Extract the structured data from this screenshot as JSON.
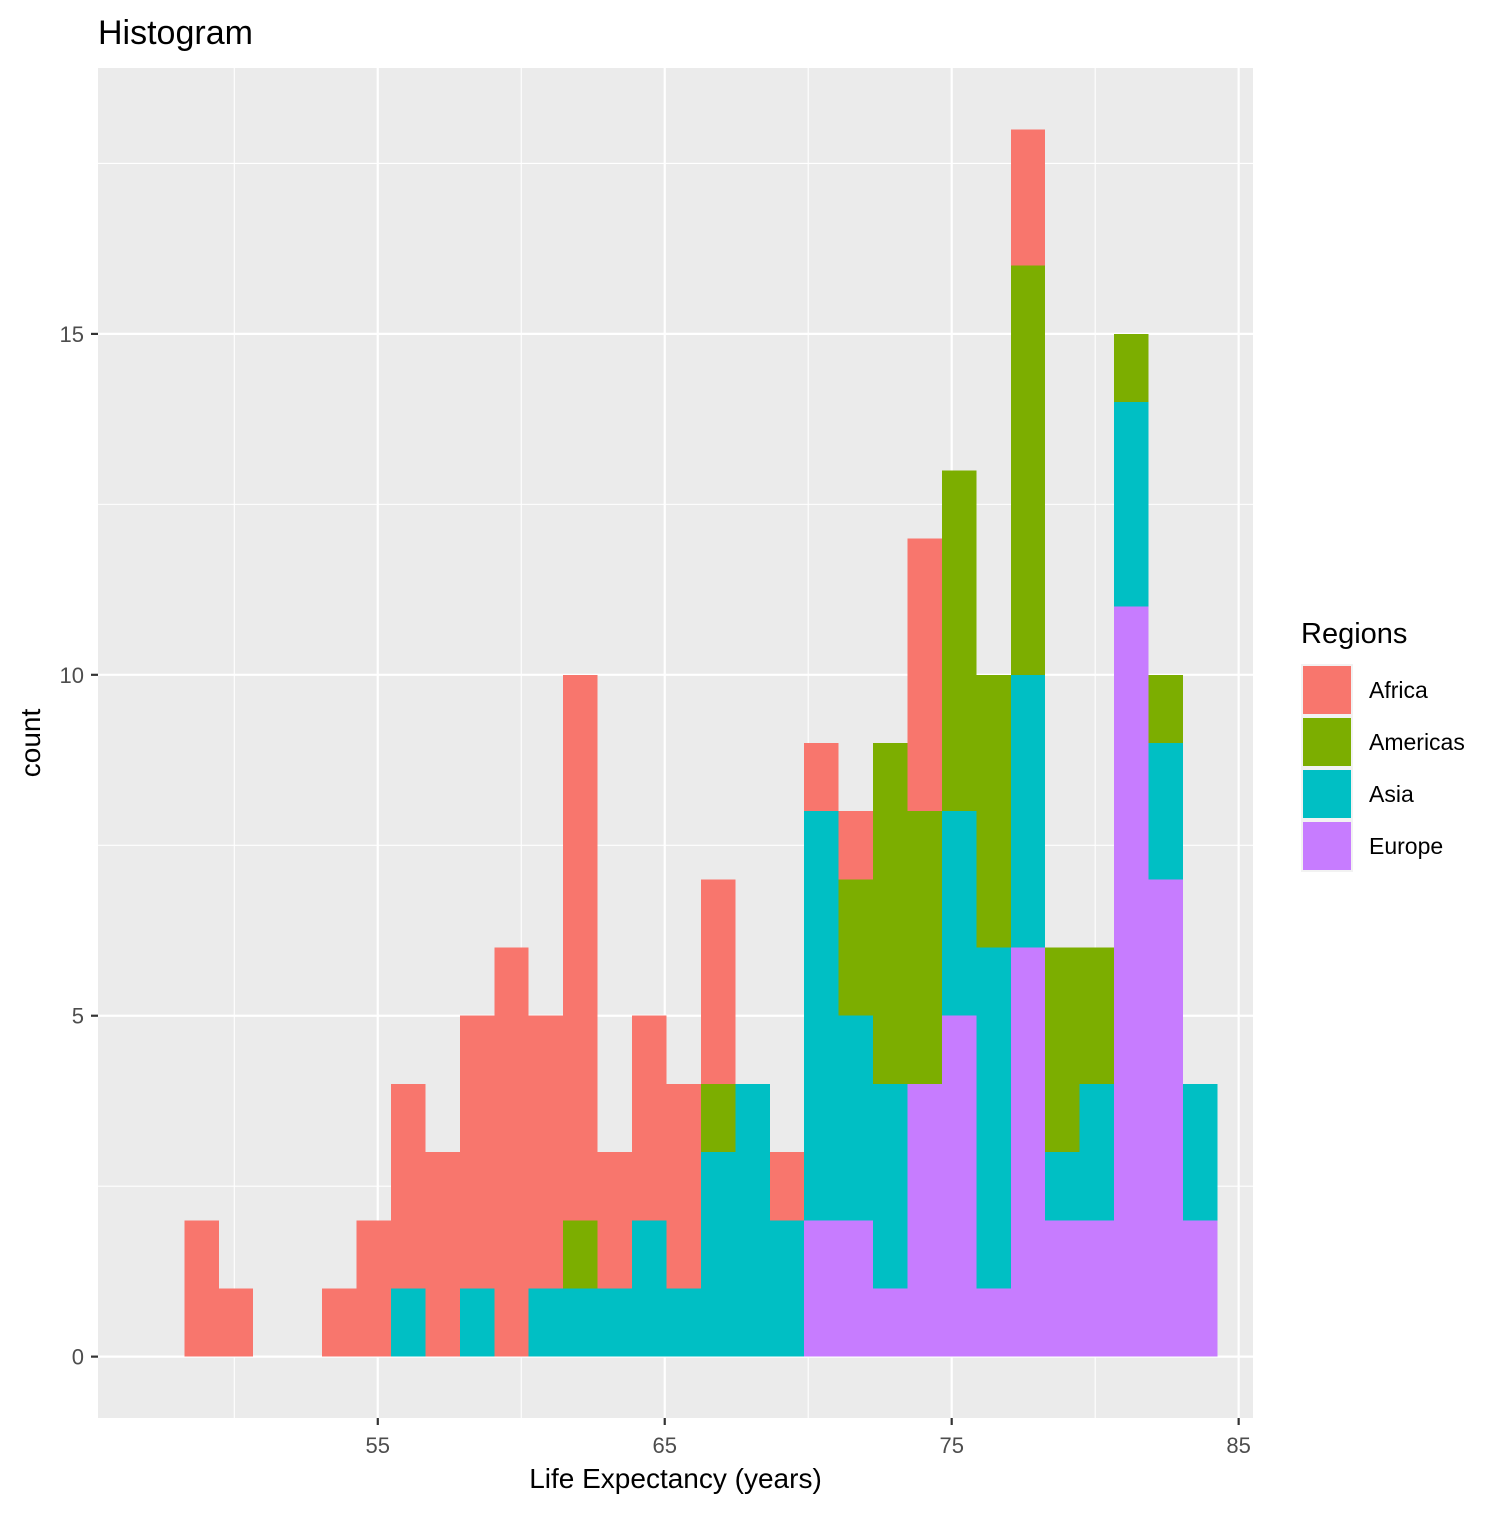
{
  "chart_data": {
    "type": "bar",
    "stacked": true,
    "title": "Histogram",
    "xlabel": "Life Expectancy (years)",
    "ylabel": "count",
    "xlim": [
      45.25,
      85.5
    ],
    "ylim": [
      -0.9,
      18.9
    ],
    "x_ticks": [
      55,
      65,
      75,
      85
    ],
    "y_ticks": [
      0,
      5,
      10,
      15
    ],
    "bin_width": 1.2,
    "bin_centers": [
      48.86,
      50.06,
      51.26,
      52.46,
      53.66,
      54.86,
      56.06,
      57.26,
      58.46,
      59.66,
      60.86,
      62.06,
      63.26,
      64.46,
      65.66,
      66.86,
      68.06,
      69.26,
      70.46,
      71.66,
      72.86,
      74.06,
      75.26,
      76.46,
      77.66,
      78.86,
      80.06,
      81.26,
      82.46,
      83.66
    ],
    "series": [
      {
        "name": "Africa",
        "values": [
          2,
          1,
          0,
          0,
          1,
          2,
          3,
          3,
          4,
          6,
          4,
          8,
          2,
          3,
          3,
          3,
          0,
          1,
          1,
          1,
          0,
          4,
          0,
          0,
          2,
          0,
          0,
          0,
          0,
          0
        ]
      },
      {
        "name": "Americas",
        "values": [
          0,
          0,
          0,
          0,
          0,
          0,
          0,
          0,
          0,
          0,
          0,
          1,
          0,
          0,
          0,
          1,
          0,
          0,
          0,
          2,
          5,
          4,
          5,
          4,
          6,
          3,
          2,
          1,
          1,
          0
        ]
      },
      {
        "name": "Asia",
        "values": [
          0,
          0,
          0,
          0,
          0,
          0,
          1,
          0,
          1,
          0,
          1,
          1,
          1,
          2,
          1,
          3,
          4,
          2,
          6,
          3,
          3,
          0,
          3,
          5,
          4,
          1,
          2,
          3,
          2,
          2
        ]
      },
      {
        "name": "Europe",
        "values": [
          0,
          0,
          0,
          0,
          0,
          0,
          0,
          0,
          0,
          0,
          0,
          0,
          0,
          0,
          0,
          0,
          0,
          0,
          2,
          2,
          1,
          4,
          5,
          1,
          6,
          2,
          2,
          11,
          7,
          2
        ]
      }
    ],
    "colors": {
      "Africa": "#F8766D",
      "Americas": "#7CAE00",
      "Asia": "#00BFC4",
      "Europe": "#C77CFF"
    },
    "legend": {
      "title": "Regions",
      "placement": "right"
    },
    "grid": true
  }
}
